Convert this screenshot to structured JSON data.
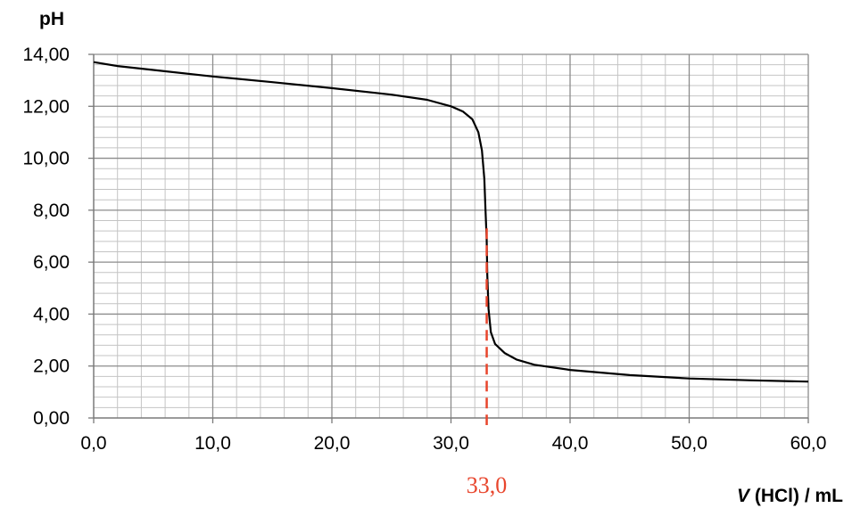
{
  "chart_data": {
    "type": "line",
    "title": "",
    "xlabel": {
      "var": "V",
      "rest": " (HCl) / mL"
    },
    "ylabel": "pH",
    "xlim": [
      0,
      60
    ],
    "ylim": [
      0,
      14
    ],
    "x_ticks": [
      "0,0",
      "10,0",
      "20,0",
      "30,0",
      "40,0",
      "50,0",
      "60,0"
    ],
    "y_ticks": [
      "0,00",
      "2,00",
      "4,00",
      "6,00",
      "8,00",
      "10,00",
      "12,00",
      "14,00"
    ],
    "grid": {
      "major": true,
      "minor": true,
      "x_minor_step": 2,
      "y_minor_step": 0.4
    },
    "series": [
      {
        "color": "#000000",
        "points": [
          [
            0,
            13.7
          ],
          [
            2,
            13.55
          ],
          [
            5,
            13.4
          ],
          [
            10,
            13.15
          ],
          [
            15,
            12.93
          ],
          [
            20,
            12.7
          ],
          [
            25,
            12.45
          ],
          [
            28,
            12.25
          ],
          [
            30,
            12.0
          ],
          [
            31,
            11.8
          ],
          [
            31.8,
            11.5
          ],
          [
            32.3,
            11.0
          ],
          [
            32.6,
            10.3
          ],
          [
            32.8,
            9.2
          ],
          [
            32.9,
            8.0
          ],
          [
            33.0,
            6.9
          ],
          [
            33.05,
            5.5
          ],
          [
            33.15,
            4.2
          ],
          [
            33.35,
            3.3
          ],
          [
            33.7,
            2.85
          ],
          [
            34.5,
            2.5
          ],
          [
            35.5,
            2.25
          ],
          [
            37,
            2.05
          ],
          [
            40,
            1.85
          ],
          [
            45,
            1.65
          ],
          [
            50,
            1.52
          ],
          [
            55,
            1.45
          ],
          [
            60,
            1.4
          ]
        ]
      }
    ],
    "annotations": [
      {
        "type": "vline",
        "x": 33.0,
        "label": "33,0",
        "color": "#e8452c"
      }
    ]
  }
}
